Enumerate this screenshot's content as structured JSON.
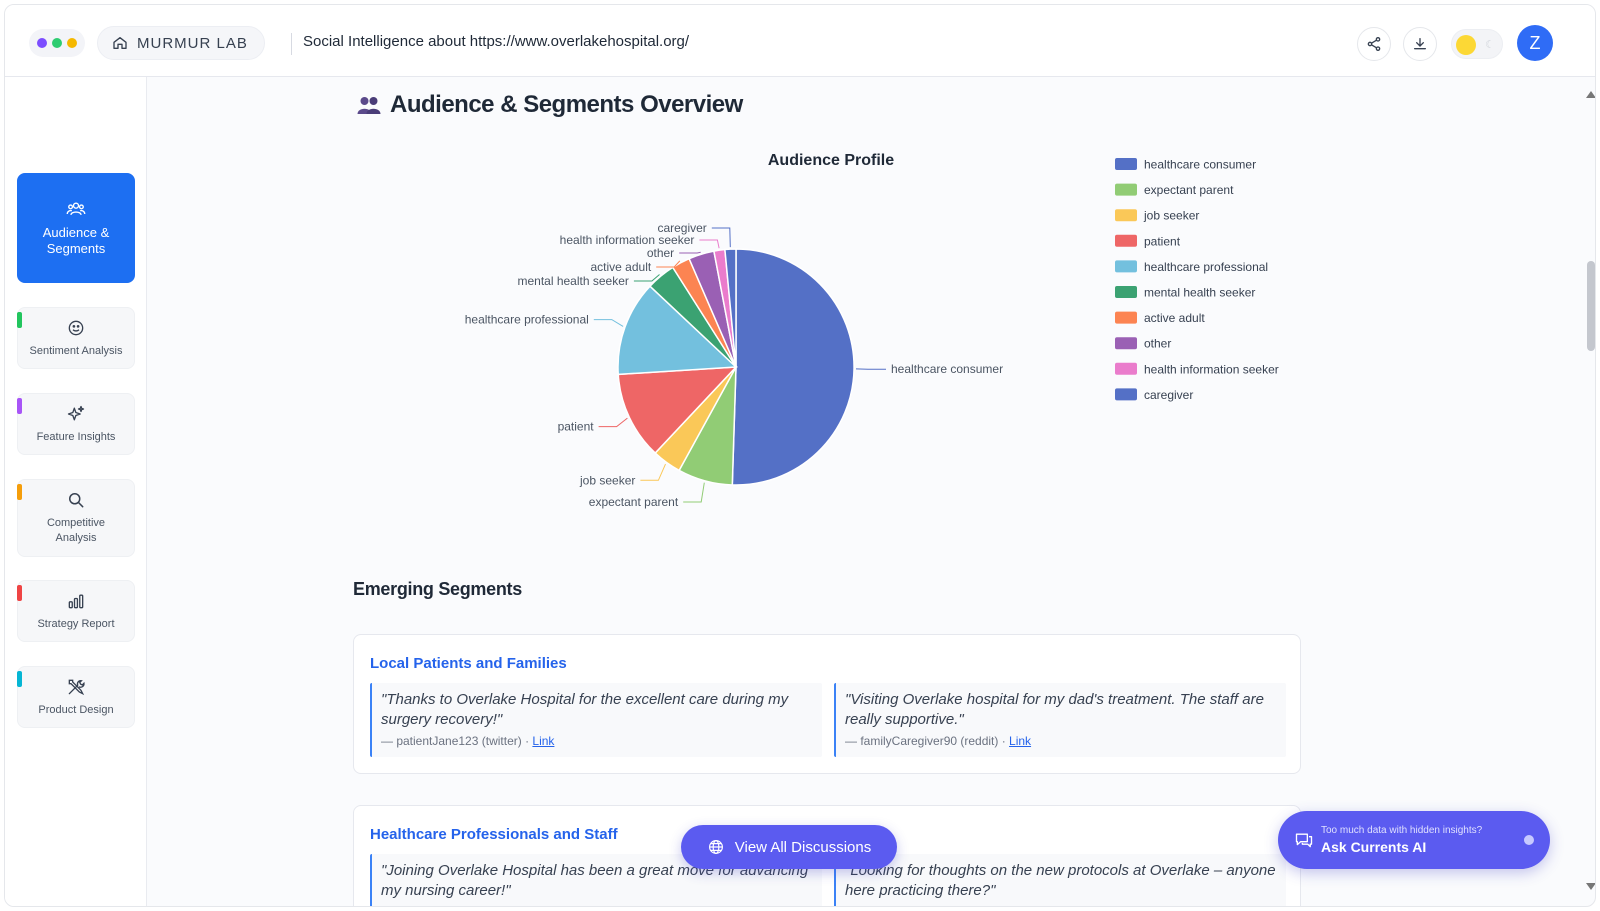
{
  "header": {
    "brand": "MURMUR LAB",
    "title": "Social Intelligence about https://www.overlakehospital.org/",
    "avatar_initial": "Z",
    "dot_colors": [
      "#7c4dff",
      "#2ecc71",
      "#f5b800"
    ],
    "icons": [
      "home-icon",
      "share-icon",
      "download-icon",
      "sun-icon",
      "moon-icon"
    ]
  },
  "sidebar": {
    "items": [
      {
        "label": "Audience & Segments",
        "icon": "users-icon",
        "active": true,
        "accent": "#1d6ff2"
      },
      {
        "label": "Sentiment Analysis",
        "icon": "smile-icon",
        "active": false,
        "accent": "#22c55e"
      },
      {
        "label": "Feature Insights",
        "icon": "sparkles-icon",
        "active": false,
        "accent": "#a855f7"
      },
      {
        "label": "Competitive Analysis",
        "icon": "search-icon",
        "active": false,
        "accent": "#f59e0b"
      },
      {
        "label": "Strategy Report",
        "icon": "bar-chart-icon",
        "active": false,
        "accent": "#ef4444"
      },
      {
        "label": "Product Design",
        "icon": "tools-icon",
        "active": false,
        "accent": "#06b6d4"
      }
    ]
  },
  "section": {
    "title": "Audience & Segments Overview",
    "icon": "users-emoji-icon"
  },
  "chart_data": {
    "type": "pie",
    "title": "Audience Profile",
    "legend_position": "right",
    "categories": [
      "healthcare consumer",
      "expectant parent",
      "job seeker",
      "patient",
      "healthcare professional",
      "mental health seeker",
      "active adult",
      "other",
      "health information seeker",
      "caregiver"
    ],
    "values": [
      50.5,
      7.5,
      4,
      12,
      13,
      4,
      2.5,
      3.5,
      1.5,
      1.5
    ],
    "colors": [
      "#5470c6",
      "#91cc75",
      "#fac858",
      "#ee6666",
      "#73c0de",
      "#3ba272",
      "#fc8452",
      "#9a60b4",
      "#ea7ccc",
      "#5470c6"
    ]
  },
  "emerging": {
    "title": "Emerging Segments",
    "segments": [
      {
        "name": "Local Patients and Families",
        "quotes": [
          {
            "text": "\"Thanks to Overlake Hospital for the excellent care during my surgery recovery!\"",
            "author": "— patientJane123 (twitter) · ",
            "link": "Link"
          },
          {
            "text": "\"Visiting Overlake hospital for my dad's treatment. The staff are really supportive.\"",
            "author": "— familyCaregiver90 (reddit) · ",
            "link": "Link"
          }
        ]
      },
      {
        "name": "Healthcare Professionals and Staff",
        "quotes": [
          {
            "text": "\"Joining Overlake Hospital has been a great move for advancing my nursing career!\"",
            "author": "",
            "link": ""
          },
          {
            "text": "\"Looking for thoughts on the new protocols at Overlake – anyone here practicing there?\"",
            "author": "",
            "link": ""
          }
        ]
      }
    ]
  },
  "floating": {
    "view_all": "View All Discussions",
    "ask_small": "Too much data with hidden insights?",
    "ask_big": "Ask Currents AI"
  }
}
